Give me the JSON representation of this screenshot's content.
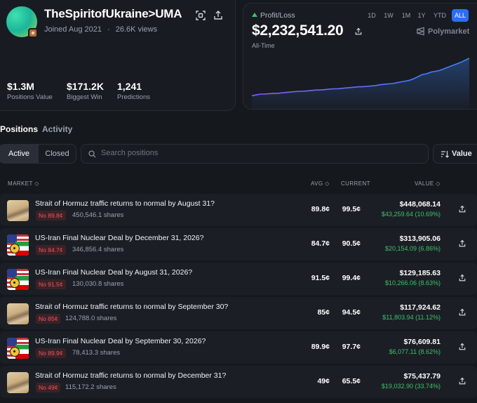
{
  "profile": {
    "username": "TheSpiritofUkraine>UMA",
    "joined": "Joined Aug 2021",
    "separator": "·",
    "views": "26.6K views",
    "stats": [
      {
        "value": "$1.3M",
        "label": "Positions Value"
      },
      {
        "value": "$171.2K",
        "label": "Biggest Win"
      },
      {
        "value": "1,241",
        "label": "Predictions"
      }
    ]
  },
  "pnl": {
    "label": "Profit/Loss",
    "value": "$2,232,541.20",
    "period": "All-Time",
    "brand": "Polymarket",
    "ranges": [
      "1D",
      "1W",
      "1M",
      "1Y",
      "YTD",
      "ALL"
    ],
    "active_range": "ALL"
  },
  "chart_data": {
    "type": "area",
    "series": [
      {
        "values": [
          0.08,
          0.1,
          0.12,
          0.12,
          0.13,
          0.14,
          0.14,
          0.15,
          0.16,
          0.17,
          0.18,
          0.19,
          0.19,
          0.2,
          0.21,
          0.22,
          0.22,
          0.23,
          0.24,
          0.25,
          0.25,
          0.26,
          0.27,
          0.28,
          0.29,
          0.3,
          0.3,
          0.31,
          0.32,
          0.33,
          0.35,
          0.36,
          0.37,
          0.38,
          0.4,
          0.42,
          0.44,
          0.46,
          0.5,
          0.55,
          0.6,
          0.62,
          0.66,
          0.68,
          0.7,
          0.74,
          0.78,
          0.82,
          0.86,
          0.9,
          0.95,
          1.0
        ]
      }
    ],
    "colors": {
      "start": "#8b5cf6",
      "end": "#3b82f6"
    }
  },
  "tabs": {
    "positions": "Positions",
    "activity": "Activity"
  },
  "filters": {
    "active": "Active",
    "closed": "Closed"
  },
  "search": {
    "placeholder": "Search positions"
  },
  "sort": {
    "label": "Value"
  },
  "columns": {
    "market": "MARKET",
    "avg": "AVG",
    "current": "CURRENT",
    "value": "VALUE"
  },
  "rows": [
    {
      "title": "Strait of Hormuz traffic returns to normal by August 31?",
      "badge": "No 89.8¢",
      "shares": "450,546.1 shares",
      "avg": "89.8¢",
      "current": "99.5¢",
      "value": "$448,068.14",
      "pnl": "$43,259.64 (10.69%)",
      "thumb": "sand"
    },
    {
      "title": "US-Iran Final Nuclear Deal by December 31, 2026?",
      "badge": "No 84.7¢",
      "shares": "346,856.4 shares",
      "avg": "84.7¢",
      "current": "90.5¢",
      "value": "$313,905.06",
      "pnl": "$20,154.09 (6.86%)",
      "thumb": "flag"
    },
    {
      "title": "US-Iran Final Nuclear Deal by August 31, 2026?",
      "badge": "No 91.5¢",
      "shares": "130,030.8 shares",
      "avg": "91.5¢",
      "current": "99.4¢",
      "value": "$129,185.63",
      "pnl": "$10,266.06 (8.63%)",
      "thumb": "flag"
    },
    {
      "title": "Strait of Hormuz traffic returns to normal by September 30?",
      "badge": "No 85¢",
      "shares": "124,788.0 shares",
      "avg": "85¢",
      "current": "94.5¢",
      "value": "$117,924.62",
      "pnl": "$11,803.94 (11.12%)",
      "thumb": "sand"
    },
    {
      "title": "US-Iran Final Nuclear Deal by September 30, 2026?",
      "badge": "No 89.9¢",
      "shares": "78,413.3 shares",
      "avg": "89.9¢",
      "current": "97.7¢",
      "value": "$76,609.81",
      "pnl": "$6,077.11 (8.62%)",
      "thumb": "flag"
    },
    {
      "title": "Strait of Hormuz traffic returns to normal by December 31?",
      "badge": "No 49¢",
      "shares": "115,172.2 shares",
      "avg": "49¢",
      "current": "65.5¢",
      "value": "$75,437.79",
      "pnl": "$19,032.90 (33.74%)",
      "thumb": "sand"
    }
  ]
}
